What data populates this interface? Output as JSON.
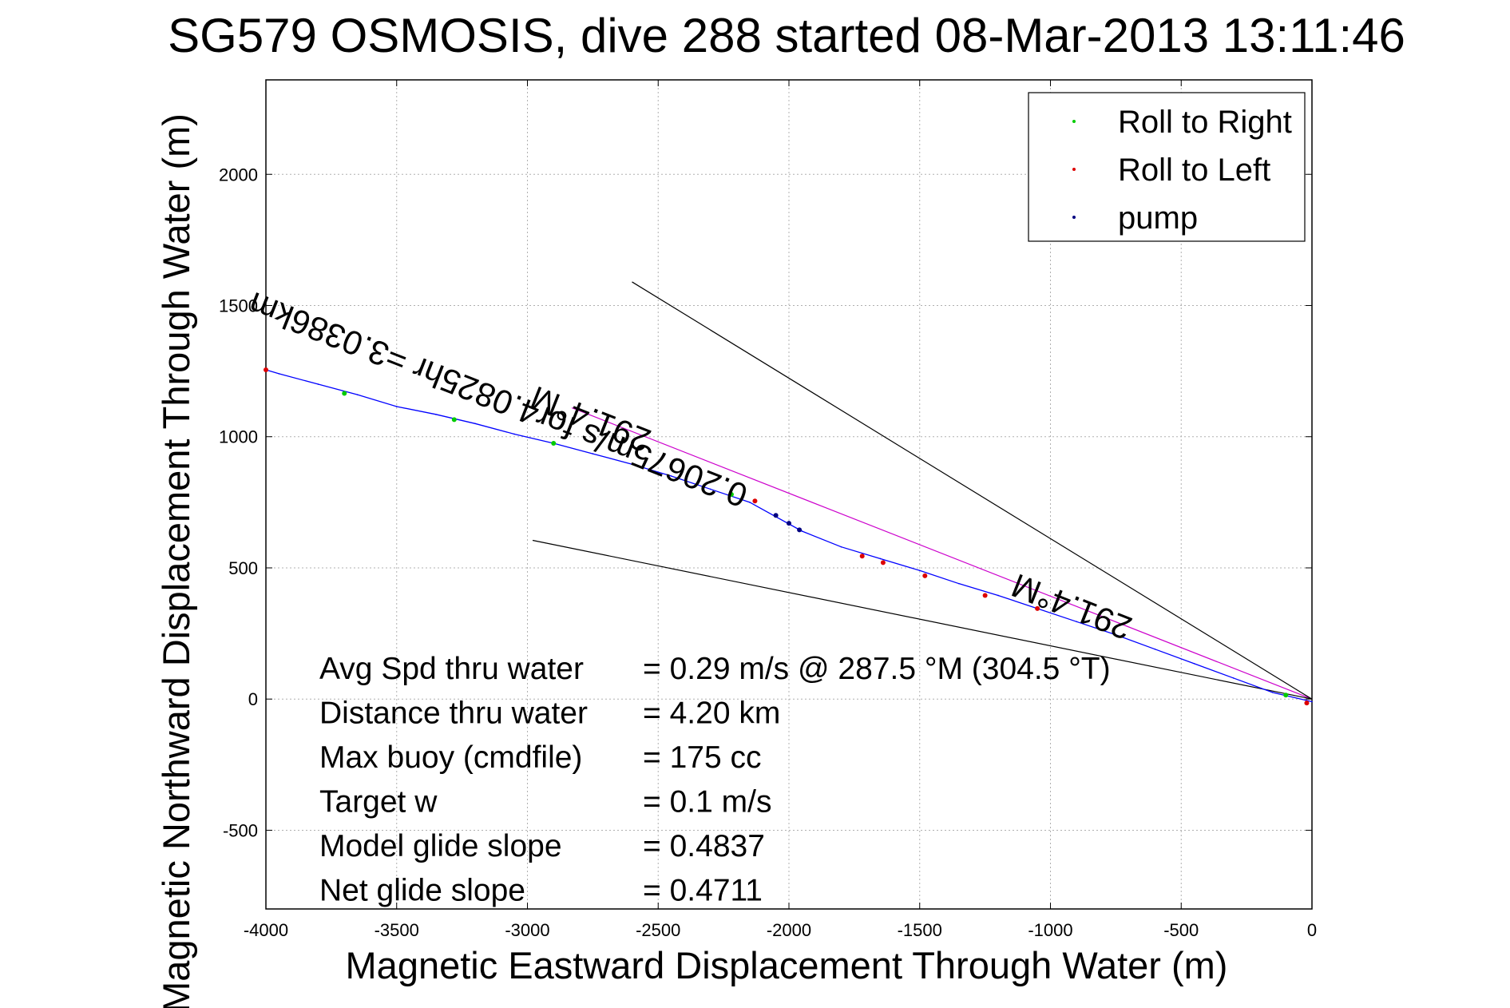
{
  "chart_data": {
    "type": "line",
    "title": "SG579 OSMOSIS, dive 288 started 08-Mar-2013 13:11:46",
    "xlabel": "Magnetic Eastward Displacement Through Water (m)",
    "ylabel": "Magnetic Northward Displacement Through Water (m)",
    "xlim": [
      -4000,
      0
    ],
    "ylim": [
      -800,
      2360
    ],
    "xticks": [
      -4000,
      -3500,
      -3000,
      -2500,
      -2000,
      -1500,
      -1000,
      -500,
      0
    ],
    "yticks": [
      -500,
      0,
      500,
      1000,
      1500,
      2000
    ],
    "grid": true,
    "legend_position": "top-right",
    "legend": [
      {
        "label": "Roll to Right",
        "color": "#00cc00"
      },
      {
        "label": "Roll to Left",
        "color": "#dd0000"
      },
      {
        "label": "pump",
        "color": "#000080"
      }
    ],
    "series": [
      {
        "name": "track",
        "color": "#0000ff",
        "x": [
          0,
          -150,
          -300,
          -450,
          -600,
          -750,
          -900,
          -1050,
          -1200,
          -1350,
          -1500,
          -1650,
          -1800,
          -1950,
          -2050,
          -2150,
          -2300,
          -2450,
          -2600,
          -2750,
          -2900,
          -3050,
          -3200,
          -3350,
          -3500,
          -3650,
          -3800,
          -3950,
          -4000
        ],
        "y": [
          -10,
          25,
          80,
          135,
          190,
          245,
          295,
          345,
          395,
          440,
          490,
          535,
          580,
          640,
          695,
          750,
          800,
          850,
          895,
          935,
          975,
          1010,
          1050,
          1085,
          1115,
          1160,
          1200,
          1240,
          1255
        ]
      },
      {
        "name": "Roll to Right",
        "color": "#00cc00",
        "x": [
          -3700,
          -3280,
          -2900,
          -2220,
          -100
        ],
        "y": [
          1165,
          1065,
          975,
          780,
          15
        ]
      },
      {
        "name": "Roll to Left",
        "color": "#dd0000",
        "x": [
          -4000,
          -2130,
          -1720,
          -1640,
          -1480,
          -1250,
          -1050,
          -20
        ],
        "y": [
          1255,
          755,
          545,
          520,
          470,
          395,
          345,
          -15
        ]
      },
      {
        "name": "pump",
        "color": "#000080",
        "x": [
          -2050,
          -2000,
          -1960
        ],
        "y": [
          700,
          670,
          645
        ]
      }
    ],
    "reference_lines": [
      {
        "name": "heading",
        "color": "#cc00cc",
        "x": [
          0,
          -2830
        ],
        "y": [
          0,
          1110
        ]
      },
      {
        "name": "bound-upper",
        "color": "#000000",
        "x": [
          0,
          -2600
        ],
        "y": [
          0,
          1590
        ]
      },
      {
        "name": "bound-lower",
        "color": "#000000",
        "x": [
          0,
          -2980
        ],
        "y": [
          0,
          605
        ]
      }
    ],
    "annotations": [
      {
        "name": "heading-label-far",
        "text": "291.4°M",
        "x": -2520,
        "y": 1020
      },
      {
        "name": "speed-label",
        "text": "0.20675m/s for4.0825hr =3.0386km",
        "x": -2150,
        "y": 810
      },
      {
        "name": "heading-label-near",
        "text": "291.4°M",
        "x": -680,
        "y": 305
      }
    ],
    "info": [
      {
        "label": "Avg Spd thru water",
        "value": "=  0.29 m/s @ 287.5 °M (304.5 °T)"
      },
      {
        "label": "Distance thru water",
        "value": "=  4.20 km"
      },
      {
        "label": "Max buoy (cmdfile)",
        "value": "= 175 cc"
      },
      {
        "label": "Target w",
        "value": "= 0.1 m/s"
      },
      {
        "label": "Model glide slope",
        "value": "= 0.4837"
      },
      {
        "label": "Net glide slope",
        "value": "= 0.4711"
      }
    ]
  }
}
